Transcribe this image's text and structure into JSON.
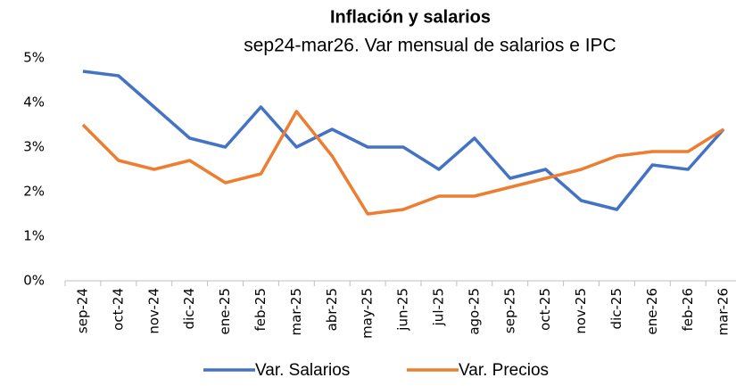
{
  "chart_data": {
    "type": "line",
    "title": "Inflación y salarios",
    "subtitle": "sep24-mar26. Var mensual de salarios e IPC",
    "categories": [
      "sep-24",
      "oct-24",
      "nov-24",
      "dic-24",
      "ene-25",
      "feb-25",
      "mar-25",
      "abr-25",
      "may-25",
      "jun-25",
      "jul-25",
      "ago-25",
      "sep-25",
      "oct-25",
      "nov-25",
      "dic-25",
      "ene-26",
      "feb-26",
      "mar-26"
    ],
    "series": [
      {
        "name": "Var. Salarios",
        "color": "#4472c4",
        "values": [
          4.7,
          4.6,
          3.9,
          3.2,
          3.0,
          3.9,
          3.0,
          3.4,
          3.0,
          3.0,
          2.5,
          3.2,
          2.3,
          2.5,
          1.8,
          1.6,
          2.6,
          2.5,
          3.4
        ]
      },
      {
        "name": "Var. Precios",
        "color": "#ed7d31",
        "values": [
          3.5,
          2.7,
          2.5,
          2.7,
          2.2,
          2.4,
          3.8,
          2.8,
          1.5,
          1.6,
          1.9,
          1.9,
          2.1,
          2.3,
          2.5,
          2.8,
          2.9,
          2.9,
          3.4
        ]
      }
    ],
    "ylim": [
      0,
      5
    ],
    "yticks": [
      {
        "value": 0,
        "label": "0%"
      },
      {
        "value": 1,
        "label": "1%"
      },
      {
        "value": 2,
        "label": "2%"
      },
      {
        "value": 3,
        "label": "3%"
      },
      {
        "value": 4,
        "label": "4%"
      },
      {
        "value": 5,
        "label": "5%"
      }
    ],
    "grid": false,
    "legend": "bottom"
  }
}
